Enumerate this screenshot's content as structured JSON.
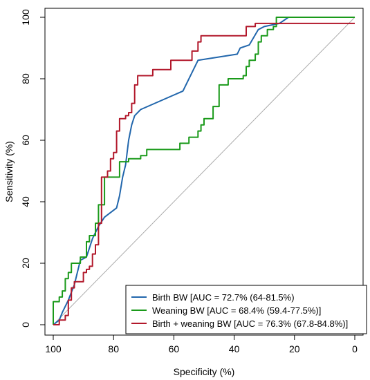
{
  "chart_data": {
    "type": "line",
    "xlabel": "Specificity (%)",
    "ylabel": "Sensitivity (%)",
    "xlim": [
      100,
      0
    ],
    "ylim": [
      0,
      100
    ],
    "x_reversed": true,
    "xticks": [
      100,
      80,
      60,
      40,
      20,
      0
    ],
    "yticks": [
      0,
      20,
      40,
      60,
      80,
      100
    ],
    "grid": false,
    "reference_line": {
      "color": "#aaaaaa"
    },
    "legend_position": "bottom-right",
    "series": [
      {
        "name": "Birth BW [AUC = 72.7% (64-81.5%)",
        "color": "#2166ac",
        "points": [
          [
            100,
            0
          ],
          [
            98,
            1.5
          ],
          [
            97,
            4
          ],
          [
            95,
            8
          ],
          [
            93,
            13
          ],
          [
            91,
            21
          ],
          [
            89,
            22
          ],
          [
            87,
            28
          ],
          [
            85,
            32
          ],
          [
            83,
            35
          ],
          [
            79,
            38
          ],
          [
            78,
            42
          ],
          [
            77,
            48
          ],
          [
            76,
            52
          ],
          [
            75,
            60
          ],
          [
            74,
            65
          ],
          [
            73,
            68
          ],
          [
            71,
            70
          ],
          [
            57,
            76
          ],
          [
            52,
            86
          ],
          [
            39,
            88
          ],
          [
            38,
            90
          ],
          [
            35,
            91
          ],
          [
            32,
            96
          ],
          [
            30,
            97
          ],
          [
            25,
            98
          ],
          [
            22,
            100
          ],
          [
            0,
            100
          ]
        ]
      },
      {
        "name": "Weaning BW [AUC = 68.4% (59.4-77.5%)]",
        "color": "#1a9a1a",
        "points": [
          [
            100,
            0
          ],
          [
            100,
            7.5
          ],
          [
            98,
            7.5
          ],
          [
            98,
            9
          ],
          [
            97,
            9
          ],
          [
            97,
            11
          ],
          [
            96,
            11
          ],
          [
            96,
            15
          ],
          [
            95,
            15
          ],
          [
            95,
            17
          ],
          [
            94,
            17
          ],
          [
            94,
            20
          ],
          [
            91,
            20
          ],
          [
            91,
            22
          ],
          [
            89,
            22
          ],
          [
            89,
            27
          ],
          [
            88,
            27
          ],
          [
            88,
            29
          ],
          [
            86,
            29
          ],
          [
            86,
            33
          ],
          [
            85,
            33
          ],
          [
            85,
            39
          ],
          [
            83,
            39
          ],
          [
            83,
            48
          ],
          [
            78,
            48
          ],
          [
            78,
            53
          ],
          [
            75,
            53
          ],
          [
            75,
            54
          ],
          [
            71,
            54
          ],
          [
            71,
            55
          ],
          [
            69,
            55
          ],
          [
            69,
            57
          ],
          [
            58,
            57
          ],
          [
            58,
            59
          ],
          [
            55,
            59
          ],
          [
            55,
            61
          ],
          [
            52,
            61
          ],
          [
            52,
            63
          ],
          [
            51,
            63
          ],
          [
            51,
            65
          ],
          [
            50,
            65
          ],
          [
            50,
            67
          ],
          [
            47,
            67
          ],
          [
            47,
            71
          ],
          [
            45,
            71
          ],
          [
            45,
            78
          ],
          [
            42,
            78
          ],
          [
            42,
            80
          ],
          [
            37,
            80
          ],
          [
            37,
            81
          ],
          [
            36,
            81
          ],
          [
            36,
            84
          ],
          [
            35,
            84
          ],
          [
            35,
            86
          ],
          [
            33,
            86
          ],
          [
            33,
            88
          ],
          [
            32,
            88
          ],
          [
            32,
            92
          ],
          [
            31,
            92
          ],
          [
            31,
            94
          ],
          [
            29,
            94
          ],
          [
            29,
            96
          ],
          [
            27,
            96
          ],
          [
            27,
            97
          ],
          [
            26,
            97
          ],
          [
            26,
            100
          ],
          [
            0,
            100
          ]
        ]
      },
      {
        "name": "Birth + weaning BW [AUC = 76.3% (67.8-84.8%)]",
        "color": "#b2182b",
        "points": [
          [
            100,
            0
          ],
          [
            98,
            0
          ],
          [
            98,
            1.5
          ],
          [
            96,
            1.5
          ],
          [
            96,
            3
          ],
          [
            95,
            3
          ],
          [
            95,
            8
          ],
          [
            94,
            8
          ],
          [
            94,
            12
          ],
          [
            93,
            12
          ],
          [
            93,
            14
          ],
          [
            90,
            14
          ],
          [
            90,
            17
          ],
          [
            89,
            17
          ],
          [
            89,
            18
          ],
          [
            88,
            18
          ],
          [
            88,
            19
          ],
          [
            87,
            19
          ],
          [
            87,
            23
          ],
          [
            86,
            23
          ],
          [
            86,
            26
          ],
          [
            85,
            26
          ],
          [
            85,
            33
          ],
          [
            84,
            33
          ],
          [
            84,
            48
          ],
          [
            82,
            48
          ],
          [
            82,
            50
          ],
          [
            81,
            50
          ],
          [
            81,
            54
          ],
          [
            80,
            54
          ],
          [
            80,
            56
          ],
          [
            79,
            56
          ],
          [
            79,
            63
          ],
          [
            78,
            63
          ],
          [
            78,
            67
          ],
          [
            76,
            67
          ],
          [
            76,
            68
          ],
          [
            75,
            68
          ],
          [
            75,
            69
          ],
          [
            74,
            69
          ],
          [
            74,
            72
          ],
          [
            73,
            72
          ],
          [
            73,
            78
          ],
          [
            72,
            78
          ],
          [
            72,
            81
          ],
          [
            67,
            81
          ],
          [
            67,
            83
          ],
          [
            61,
            83
          ],
          [
            61,
            86
          ],
          [
            54,
            86
          ],
          [
            54,
            89
          ],
          [
            52,
            89
          ],
          [
            52,
            92
          ],
          [
            51,
            92
          ],
          [
            51,
            94
          ],
          [
            36,
            94
          ],
          [
            36,
            97
          ],
          [
            33,
            97
          ],
          [
            33,
            98
          ],
          [
            0,
            98
          ]
        ]
      }
    ]
  }
}
